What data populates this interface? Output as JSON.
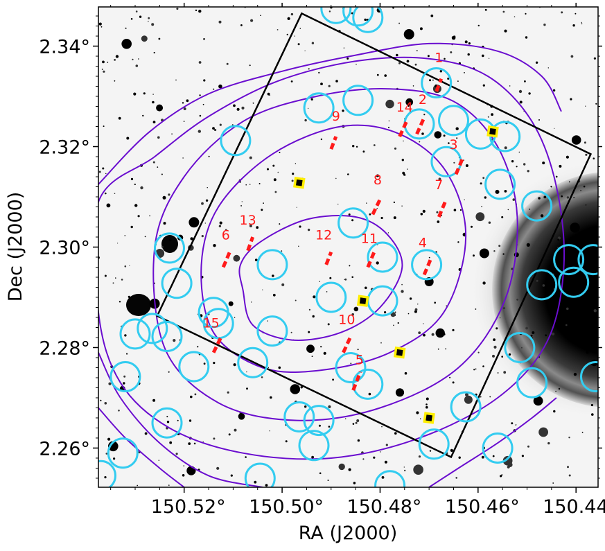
{
  "axes": {
    "xlabel": "RA (J2000)",
    "ylabel": "Dec (J2000)",
    "xlim": [
      150.5375,
      150.4355
    ],
    "ylim": [
      2.2522,
      2.3478
    ],
    "x_ticks": [
      {
        "value": 150.52,
        "label": "150.52°"
      },
      {
        "value": 150.5,
        "label": "150.50°"
      },
      {
        "value": 150.48,
        "label": "150.48°"
      },
      {
        "value": 150.46,
        "label": "150.46°"
      },
      {
        "value": 150.44,
        "label": "150.44°"
      }
    ],
    "y_ticks": [
      {
        "value": 2.26,
        "label": "2.26°"
      },
      {
        "value": 2.28,
        "label": "2.28°"
      },
      {
        "value": 2.3,
        "label": "2.30°"
      },
      {
        "value": 2.32,
        "label": "2.32°"
      },
      {
        "value": 2.34,
        "label": "2.34°"
      }
    ]
  },
  "colors": {
    "circle": "#33ccf0",
    "contour": "#6a0dcf",
    "slit": "#ff1a1a",
    "square": "#ffee00",
    "footprint": "#000000"
  },
  "footprint": [
    [
      150.496,
      2.3465
    ],
    [
      150.437,
      2.3185
    ],
    [
      150.4655,
      2.2582
    ],
    [
      150.5255,
      2.2863
    ]
  ],
  "contours": [
    [
      [
        150.508,
        2.2915
      ],
      [
        150.506,
        2.2845
      ],
      [
        150.498,
        2.2815
      ],
      [
        150.488,
        2.283
      ],
      [
        150.48,
        2.288
      ],
      [
        150.4755,
        2.296
      ],
      [
        150.4785,
        2.3025
      ],
      [
        150.485,
        2.306
      ],
      [
        150.495,
        2.3055
      ],
      [
        150.5045,
        2.301
      ],
      [
        150.5085,
        2.2965
      ]
    ],
    [
      [
        150.5165,
        2.296
      ],
      [
        150.514,
        2.283
      ],
      [
        150.504,
        2.276
      ],
      [
        150.492,
        2.2755
      ],
      [
        150.478,
        2.279
      ],
      [
        150.467,
        2.287
      ],
      [
        150.4625,
        2.302
      ],
      [
        150.4665,
        2.315
      ],
      [
        150.476,
        2.3225
      ],
      [
        150.488,
        2.324
      ],
      [
        150.502,
        2.3185
      ],
      [
        150.513,
        2.308
      ]
    ],
    [
      [
        150.526,
        2.3
      ],
      [
        150.524,
        2.28
      ],
      [
        150.513,
        2.269
      ],
      [
        150.497,
        2.2655
      ],
      [
        150.48,
        2.268
      ],
      [
        150.464,
        2.276
      ],
      [
        150.4545,
        2.2895
      ],
      [
        150.452,
        2.306
      ],
      [
        150.456,
        2.32
      ],
      [
        150.465,
        2.329
      ],
      [
        150.478,
        2.3315
      ],
      [
        150.493,
        2.33
      ],
      [
        150.508,
        2.325
      ],
      [
        150.52,
        2.314
      ]
    ],
    [
      [
        150.5375,
        2.287
      ],
      [
        150.533,
        2.273
      ],
      [
        150.523,
        2.264
      ],
      [
        150.508,
        2.259
      ],
      [
        150.49,
        2.258
      ],
      [
        150.472,
        2.262
      ],
      [
        150.456,
        2.27
      ],
      [
        150.446,
        2.281
      ],
      [
        150.4425,
        2.296
      ],
      [
        150.444,
        2.312
      ],
      [
        150.449,
        2.325
      ],
      [
        150.458,
        2.334
      ],
      [
        150.47,
        2.3375
      ],
      [
        150.485,
        2.337
      ],
      [
        150.501,
        2.333
      ],
      [
        150.515,
        2.326
      ],
      [
        150.526,
        2.318
      ],
      [
        150.5375,
        2.309
      ]
    ],
    [
      [
        150.5375,
        2.3125
      ],
      [
        150.527,
        2.323
      ],
      [
        150.515,
        2.3305
      ],
      [
        150.5,
        2.335
      ],
      [
        150.486,
        2.338
      ],
      [
        150.47,
        2.3405
      ],
      [
        150.456,
        2.339
      ],
      [
        150.447,
        2.334
      ],
      [
        150.443,
        2.327
      ]
    ],
    [
      [
        150.5375,
        2.279
      ],
      [
        150.533,
        2.27
      ],
      [
        150.525,
        2.261
      ],
      [
        150.515,
        2.2545
      ],
      [
        150.504,
        2.2522
      ]
    ],
    [
      [
        150.5375,
        2.268
      ],
      [
        150.532,
        2.262
      ],
      [
        150.525,
        2.256
      ],
      [
        150.52,
        2.2522
      ]
    ],
    [
      [
        150.47,
        2.2522
      ],
      [
        150.464,
        2.256
      ],
      [
        150.456,
        2.261
      ],
      [
        150.449,
        2.266
      ],
      [
        150.444,
        2.27
      ]
    ]
  ],
  "circles": [
    [
      150.489,
      2.3475
    ],
    [
      150.4845,
      2.347
    ],
    [
      150.4825,
      2.3457
    ],
    [
      150.4685,
      2.3327
    ],
    [
      150.4845,
      2.3292
    ],
    [
      150.4925,
      2.3277
    ],
    [
      150.472,
      2.3245
    ],
    [
      150.465,
      2.3252
    ],
    [
      150.4595,
      2.3225
    ],
    [
      150.4545,
      2.322
    ],
    [
      150.5095,
      2.3212
    ],
    [
      150.4665,
      2.317
    ],
    [
      150.4555,
      2.3125
    ],
    [
      150.448,
      2.3082
    ],
    [
      150.4855,
      2.3048
    ],
    [
      150.523,
      2.2998
    ],
    [
      150.502,
      2.2965
    ],
    [
      150.4795,
      2.298
    ],
    [
      150.4705,
      2.2965
    ],
    [
      150.5215,
      2.2928
    ],
    [
      150.49,
      2.29
    ],
    [
      150.4795,
      2.2893
    ],
    [
      150.514,
      2.287
    ],
    [
      150.513,
      2.2848
    ],
    [
      150.502,
      2.2833
    ],
    [
      150.53,
      2.2827
    ],
    [
      150.5265,
      2.2838
    ],
    [
      150.5235,
      2.2822
    ],
    [
      150.506,
      2.277
    ],
    [
      150.518,
      2.2762
    ],
    [
      150.486,
      2.276
    ],
    [
      150.4825,
      2.2727
    ],
    [
      150.532,
      2.2742
    ],
    [
      150.4515,
      2.28
    ],
    [
      150.449,
      2.273
    ],
    [
      150.4625,
      2.2682
    ],
    [
      150.4965,
      2.2662
    ],
    [
      150.4925,
      2.2655
    ],
    [
      150.5235,
      2.265
    ],
    [
      150.4935,
      2.2605
    ],
    [
      150.469,
      2.2608
    ],
    [
      150.456,
      2.26
    ],
    [
      150.5325,
      2.259
    ],
    [
      150.5045,
      2.254
    ],
    [
      150.478,
      2.2525
    ],
    [
      150.537,
      2.2545
    ],
    [
      150.447,
      2.2925
    ],
    [
      150.4405,
      2.293
    ],
    [
      150.4415,
      2.2975
    ],
    [
      150.4365,
      2.2975
    ],
    [
      150.436,
      2.2742
    ]
  ],
  "slits": [
    {
      "id": "1",
      "label": "1",
      "x1": 150.4685,
      "y1": 2.331,
      "x2": 150.4675,
      "y2": 2.3335,
      "lx": 150.468,
      "ly": 2.3368
    },
    {
      "id": "2",
      "label": "2",
      "x1": 150.4725,
      "y1": 2.3225,
      "x2": 150.471,
      "y2": 2.3258,
      "lx": 150.4713,
      "ly": 2.3285
    },
    {
      "id": "3",
      "label": "3",
      "x1": 150.4645,
      "y1": 2.3145,
      "x2": 150.463,
      "y2": 2.318,
      "lx": 150.465,
      "ly": 2.3195
    },
    {
      "id": "4",
      "label": "4",
      "x1": 150.471,
      "y1": 2.2945,
      "x2": 150.4695,
      "y2": 2.298,
      "lx": 150.4713,
      "ly": 2.3
    },
    {
      "id": "5",
      "label": "5",
      "x1": 150.4855,
      "y1": 2.2715,
      "x2": 150.484,
      "y2": 2.2752,
      "lx": 150.4842,
      "ly": 2.2767
    },
    {
      "id": "6",
      "label": "6",
      "x1": 150.512,
      "y1": 2.296,
      "x2": 150.5105,
      "y2": 2.2995,
      "lx": 150.5115,
      "ly": 2.3015
    },
    {
      "id": "7",
      "label": "7",
      "x1": 150.468,
      "y1": 2.306,
      "x2": 150.4665,
      "y2": 2.3095,
      "lx": 150.468,
      "ly": 2.3115
    },
    {
      "id": "8",
      "label": "8",
      "x1": 150.4815,
      "y1": 2.3065,
      "x2": 150.48,
      "y2": 2.3095,
      "lx": 150.4805,
      "ly": 2.3125
    },
    {
      "id": "9",
      "label": "9",
      "x1": 150.49,
      "y1": 2.3195,
      "x2": 150.489,
      "y2": 2.322,
      "lx": 150.489,
      "ly": 2.3252
    },
    {
      "id": "10",
      "label": "10",
      "x1": 150.4875,
      "y1": 2.279,
      "x2": 150.486,
      "y2": 2.2822,
      "lx": 150.4868,
      "ly": 2.2847
    },
    {
      "id": "11",
      "label": "11",
      "x1": 150.4825,
      "y1": 2.296,
      "x2": 150.481,
      "y2": 2.2995,
      "lx": 150.4822,
      "ly": 2.3008
    },
    {
      "id": "12",
      "label": "12",
      "x1": 150.491,
      "y1": 2.2965,
      "x2": 150.49,
      "y2": 2.299,
      "lx": 150.4915,
      "ly": 2.3015
    },
    {
      "id": "13",
      "label": "13",
      "x1": 150.507,
      "y1": 2.2993,
      "x2": 150.506,
      "y2": 2.302,
      "lx": 150.507,
      "ly": 2.3045
    },
    {
      "id": "14",
      "label": "14",
      "x1": 150.476,
      "y1": 2.322,
      "x2": 150.4745,
      "y2": 2.3252,
      "lx": 150.475,
      "ly": 2.327
    },
    {
      "id": "15",
      "label": "15",
      "x1": 150.514,
      "y1": 2.279,
      "x2": 150.5125,
      "y2": 2.282,
      "lx": 150.5145,
      "ly": 2.284
    }
  ],
  "squares": [
    [
      150.4965,
      2.3128
    ],
    [
      150.457,
      2.323
    ],
    [
      150.4835,
      2.2893
    ],
    [
      150.476,
      2.279
    ],
    [
      150.47,
      2.266
    ]
  ]
}
